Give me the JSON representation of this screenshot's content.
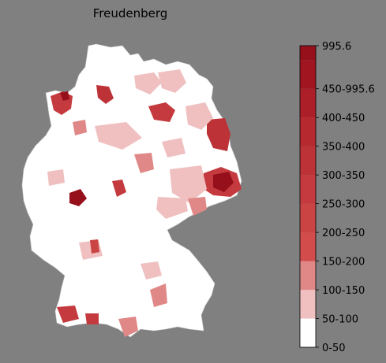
{
  "title": "Freudenberg",
  "colors": {
    "background": "#808080",
    "empty_region": "#ffffff",
    "border": "#c8c8c8"
  },
  "legend": {
    "type": "choropleth-colorbar",
    "bins": [
      {
        "label": "0-50",
        "color": "#ffffff"
      },
      {
        "label": "50-100",
        "color": "#f0c0c0"
      },
      {
        "label": "100-150",
        "color": "#e08888"
      },
      {
        "label": "150-200",
        "color": "#d24c4c"
      },
      {
        "label": "200-250",
        "color": "#cb4444"
      },
      {
        "label": "250-300",
        "color": "#c43a3e"
      },
      {
        "label": "300-350",
        "color": "#bd3236"
      },
      {
        "label": "350-400",
        "color": "#b6292f"
      },
      {
        "label": "400-450",
        "color": "#ad1f28"
      },
      {
        "label": "450-995.6",
        "color": "#a01520"
      },
      {
        "label": "995.6",
        "color": "#96101c"
      }
    ]
  }
}
